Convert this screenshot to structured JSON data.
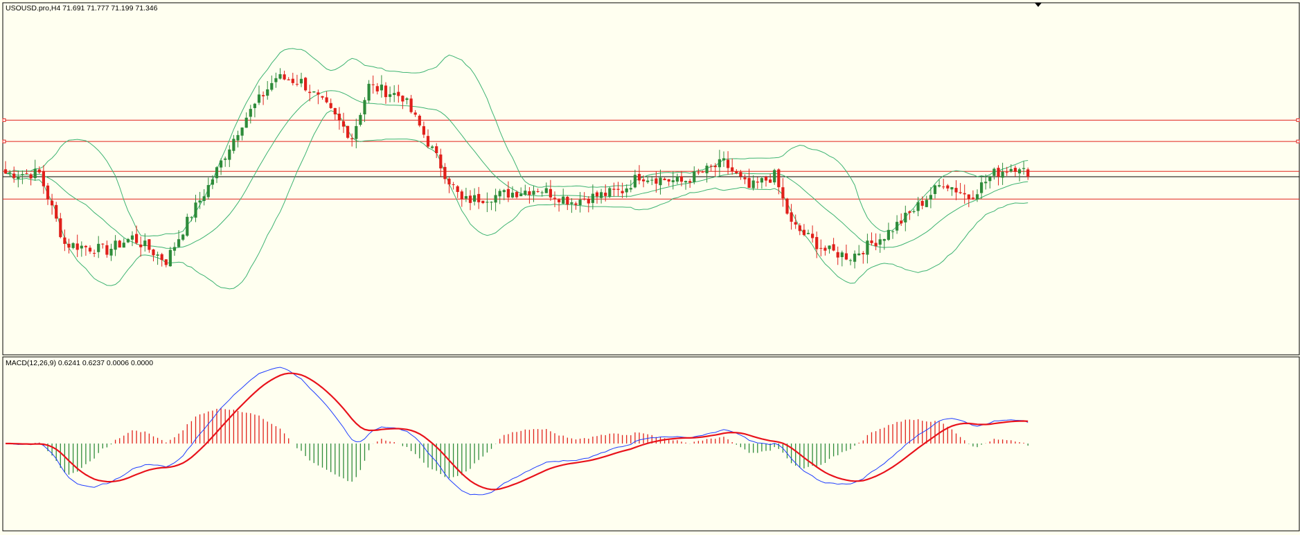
{
  "price_panel": {
    "info_text": "USOUSD.pro,H4  71.691 71.777 71.199 71.346"
  },
  "macd_panel": {
    "info_text": "MACD(12,26,9) 0.6241 0.6237 0.0006 0.0000"
  },
  "colors": {
    "background": "#fffff0",
    "frame": "#000000",
    "bull_candle": "#2e8b3a",
    "bear_candle": "#e0201b",
    "bollinger": "#3cb371",
    "level_line": "#e0201b",
    "current_price_line": "#000000",
    "macd_line": "#1e3cff",
    "signal_line": "#e8121b",
    "hist_positive": "#e0201b",
    "hist_negative": "#2e8b3a"
  },
  "chart_data": [
    {
      "type": "candlestick",
      "symbol": "USOUSD.pro",
      "timeframe": "H4",
      "last_bar": {
        "open": 71.691,
        "high": 71.777,
        "low": 71.199,
        "close": 71.346
      },
      "horizontal_levels": [
        74.0,
        73.0,
        71.6,
        70.3
      ],
      "current_price_line": 71.346,
      "bollinger_bands": true,
      "ylim": [
        63.0,
        79.5
      ],
      "keypoints": [
        {
          "i": 0,
          "c": 71.5
        },
        {
          "i": 8,
          "c": 71.5
        },
        {
          "i": 14,
          "c": 68.2
        },
        {
          "i": 24,
          "c": 67.9
        },
        {
          "i": 30,
          "c": 68.5
        },
        {
          "i": 38,
          "c": 67.4
        },
        {
          "i": 44,
          "c": 69.6
        },
        {
          "i": 48,
          "c": 70.9
        },
        {
          "i": 56,
          "c": 73.9
        },
        {
          "i": 64,
          "c": 76.0
        },
        {
          "i": 70,
          "c": 75.8
        },
        {
          "i": 76,
          "c": 74.6
        },
        {
          "i": 82,
          "c": 73.2
        },
        {
          "i": 86,
          "c": 75.6
        },
        {
          "i": 94,
          "c": 75.1
        },
        {
          "i": 98,
          "c": 73.7
        },
        {
          "i": 104,
          "c": 71.5
        },
        {
          "i": 108,
          "c": 70.2
        },
        {
          "i": 126,
          "c": 70.8
        },
        {
          "i": 134,
          "c": 70.2
        },
        {
          "i": 146,
          "c": 70.7
        },
        {
          "i": 150,
          "c": 71.4
        },
        {
          "i": 160,
          "c": 71.1
        },
        {
          "i": 170,
          "c": 72.0
        },
        {
          "i": 176,
          "c": 70.8
        },
        {
          "i": 182,
          "c": 71.4
        },
        {
          "i": 186,
          "c": 69.1
        },
        {
          "i": 194,
          "c": 67.9
        },
        {
          "i": 200,
          "c": 67.6
        },
        {
          "i": 208,
          "c": 68.6
        },
        {
          "i": 214,
          "c": 69.6
        },
        {
          "i": 222,
          "c": 71.1
        },
        {
          "i": 228,
          "c": 70.4
        },
        {
          "i": 234,
          "c": 71.5
        },
        {
          "i": 240,
          "c": 71.9
        },
        {
          "i": 242,
          "c": 71.35
        }
      ]
    },
    {
      "type": "line",
      "indicator": "MACD(12,26,9)",
      "values": {
        "macd": 0.6241,
        "signal": 0.6237,
        "histogram": 0.0006
      },
      "series": [
        {
          "values": "MACD main line"
        },
        {
          "values": "Signal line"
        },
        {
          "values": "Histogram"
        }
      ]
    }
  ]
}
